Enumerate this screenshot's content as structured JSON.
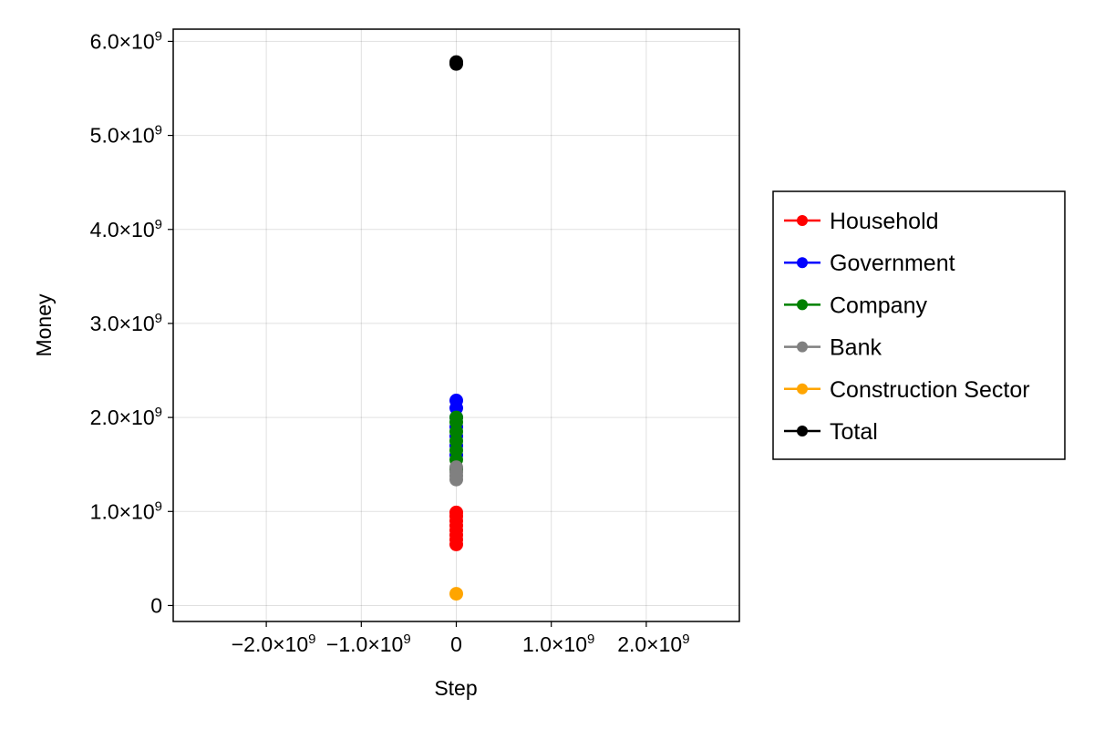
{
  "chart_data": {
    "type": "scatter",
    "xlabel": "Step",
    "ylabel": "Money",
    "xlim": [
      -2980000000,
      2980000000
    ],
    "ylim": [
      -170000000,
      6130000000
    ],
    "grid": true,
    "x_ticks": [
      {
        "value": -2000000000,
        "mantissa": "−2.0×10",
        "exp": "9"
      },
      {
        "value": -1000000000,
        "mantissa": "−1.0×10",
        "exp": "9"
      },
      {
        "value": 0,
        "mantissa": "0",
        "exp": ""
      },
      {
        "value": 1000000000,
        "mantissa": "1.0×10",
        "exp": "9"
      },
      {
        "value": 2000000000,
        "mantissa": "2.0×10",
        "exp": "9"
      }
    ],
    "y_ticks": [
      {
        "value": 0,
        "mantissa": "0",
        "exp": ""
      },
      {
        "value": 1000000000,
        "mantissa": "1.0×10",
        "exp": "9"
      },
      {
        "value": 2000000000,
        "mantissa": "2.0×10",
        "exp": "9"
      },
      {
        "value": 3000000000,
        "mantissa": "3.0×10",
        "exp": "9"
      },
      {
        "value": 4000000000,
        "mantissa": "4.0×10",
        "exp": "9"
      },
      {
        "value": 5000000000,
        "mantissa": "5.0×10",
        "exp": "9"
      },
      {
        "value": 6000000000,
        "mantissa": "6.0×10",
        "exp": "9"
      }
    ],
    "legend_position": "right",
    "series": [
      {
        "name": "Household",
        "color": "#ff0000",
        "points": [
          [
            0,
            650000000
          ],
          [
            0,
            700000000
          ],
          [
            0,
            750000000
          ],
          [
            0,
            800000000
          ],
          [
            0,
            850000000
          ],
          [
            0,
            900000000
          ],
          [
            0,
            950000000
          ],
          [
            0,
            990000000
          ]
        ]
      },
      {
        "name": "Government",
        "color": "#0000ff",
        "points": [
          [
            0,
            1600000000
          ],
          [
            0,
            1700000000
          ],
          [
            0,
            1800000000
          ],
          [
            0,
            1900000000
          ],
          [
            0,
            2000000000
          ],
          [
            0,
            2100000000
          ],
          [
            0,
            2180000000
          ]
        ]
      },
      {
        "name": "Company",
        "color": "#008000",
        "points": [
          [
            0,
            1450000000
          ],
          [
            0,
            1550000000
          ],
          [
            0,
            1650000000
          ],
          [
            0,
            1750000000
          ],
          [
            0,
            1850000000
          ],
          [
            0,
            1950000000
          ],
          [
            0,
            2000000000
          ]
        ]
      },
      {
        "name": "Bank",
        "color": "#808080",
        "points": [
          [
            0,
            1340000000
          ],
          [
            0,
            1380000000
          ],
          [
            0,
            1420000000
          ],
          [
            0,
            1470000000
          ]
        ]
      },
      {
        "name": "Construction Sector",
        "color": "#ffa500",
        "points": [
          [
            0,
            125000000
          ]
        ]
      },
      {
        "name": "Total",
        "color": "#000000",
        "points": [
          [
            0,
            5760000000
          ],
          [
            0,
            5780000000
          ]
        ]
      }
    ]
  }
}
